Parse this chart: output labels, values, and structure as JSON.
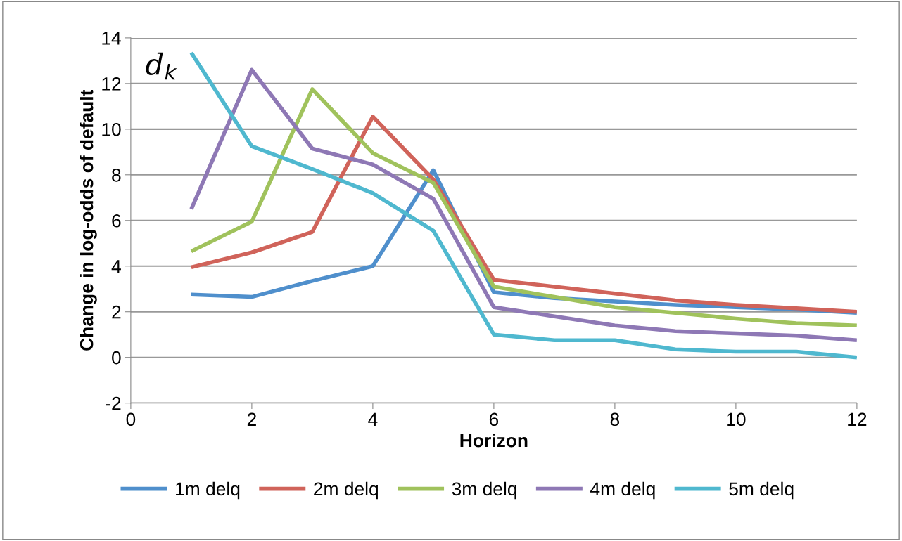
{
  "chart_data": {
    "type": "line",
    "xlabel": "Horizon",
    "ylabel": "Change in log-odds of default",
    "x": [
      1,
      2,
      3,
      4,
      5,
      6,
      7,
      8,
      9,
      10,
      11,
      12
    ],
    "series": [
      {
        "name": "1m delq",
        "color": "#4f8fcc",
        "values": [
          2.75,
          2.65,
          3.35,
          4.0,
          8.2,
          2.85,
          2.6,
          2.45,
          2.3,
          2.2,
          2.1,
          1.95
        ]
      },
      {
        "name": "2m delq",
        "color": "#d0635a",
        "values": [
          3.95,
          4.6,
          5.5,
          10.55,
          7.8,
          3.4,
          3.1,
          2.8,
          2.5,
          2.3,
          2.15,
          2.0
        ]
      },
      {
        "name": "3m delq",
        "color": "#a0c25c",
        "values": [
          4.65,
          5.95,
          11.75,
          8.95,
          7.65,
          3.1,
          2.65,
          2.2,
          1.95,
          1.7,
          1.5,
          1.4
        ]
      },
      {
        "name": "4m delq",
        "color": "#8e78b5",
        "values": [
          6.5,
          12.6,
          9.15,
          8.45,
          6.95,
          2.2,
          1.8,
          1.4,
          1.15,
          1.05,
          0.95,
          0.75
        ]
      },
      {
        "name": "5m delq",
        "color": "#4fb8cf",
        "values": [
          13.35,
          9.25,
          8.25,
          7.2,
          5.55,
          1.0,
          0.75,
          0.75,
          0.35,
          0.25,
          0.25,
          0.0
        ]
      }
    ],
    "xlim": [
      0,
      12
    ],
    "xticks": [
      0,
      2,
      4,
      6,
      8,
      10,
      12
    ],
    "ylim": [
      -2,
      14
    ],
    "yticks": [
      -2,
      0,
      2,
      4,
      6,
      8,
      10,
      12,
      14
    ],
    "grid": "y",
    "legend": "bottom",
    "line_style": "solid",
    "annotations": [
      "d$_{k}$"
    ]
  }
}
